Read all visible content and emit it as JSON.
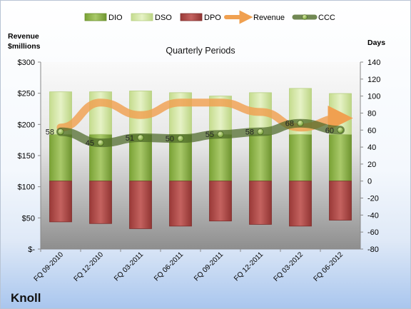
{
  "chart_data": {
    "type": "bar",
    "title": "Quarterly Periods",
    "company": "Knoll",
    "left_axis_label": "Revenue\n$millions",
    "right_axis_label": "Days",
    "left_axis": {
      "min": 0,
      "max": 300,
      "step": 50,
      "tick_labels": [
        "$-",
        "$50",
        "$100",
        "$150",
        "$200",
        "$250",
        "$300"
      ]
    },
    "right_axis": {
      "min": -80,
      "max": 140,
      "step": 20
    },
    "categories": [
      "FQ 09-2010",
      "FQ 12-2010",
      "FQ 03-2011",
      "FQ 06-2011",
      "FQ 09-2011",
      "FQ 12-2011",
      "FQ 03-2012",
      "FQ 06-2012"
    ],
    "legend": [
      "DIO",
      "DSO",
      "DPO",
      "Revenue",
      "CCC"
    ],
    "legend_position": "top",
    "series": [
      {
        "name": "DIO",
        "axis": "right",
        "kind": "stacked-bar",
        "color": "#8fb34a",
        "values": [
          55,
          55,
          55,
          55,
          55,
          55,
          55,
          55
        ]
      },
      {
        "name": "DSO",
        "axis": "right",
        "kind": "stacked-bar",
        "color": "#d2e6a4",
        "values": [
          50,
          50,
          51,
          49,
          45,
          49,
          54,
          48
        ]
      },
      {
        "name": "DPO",
        "axis": "right",
        "kind": "stacked-bar",
        "color": "#b0504e",
        "values": [
          -48,
          -50,
          -56,
          -53,
          -47,
          -51,
          -53,
          -46
        ]
      },
      {
        "name": "Revenue",
        "axis": "left",
        "kind": "line",
        "color": "#f0a050",
        "values": [
          195,
          235,
          215,
          235,
          235,
          220,
          195,
          210
        ]
      },
      {
        "name": "CCC",
        "axis": "right",
        "kind": "line",
        "color": "#5a7a30",
        "values": [
          58,
          45,
          51,
          50,
          55,
          58,
          68,
          60
        ]
      }
    ],
    "ccc_labels": [
      "58",
      "45",
      "51",
      "50",
      "55",
      "58",
      "68",
      "60"
    ],
    "grid": false
  }
}
